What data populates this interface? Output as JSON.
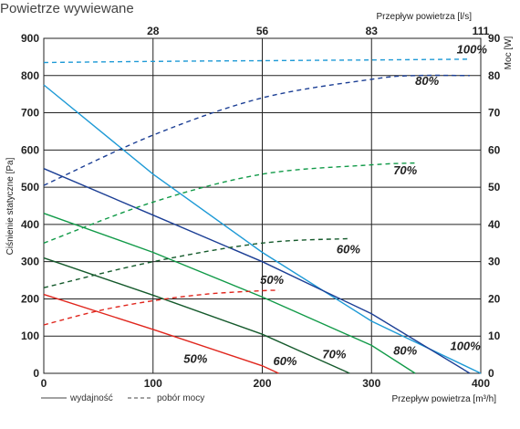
{
  "chart_data": {
    "type": "line",
    "title": "Powietrze wywiewane",
    "xlabel": "Przepływ powietrza [m³/h]",
    "x2label": "Przepływ powietrza [l/s]",
    "ylabel": "Ciśnienie statyczne [Pa]",
    "y2label": "Moc [W]",
    "xlim": [
      0,
      400
    ],
    "ylim": [
      0,
      900
    ],
    "y2lim": [
      0,
      90
    ],
    "x_ticks": [
      "0",
      "100",
      "200",
      "300",
      "400"
    ],
    "y_ticks": [
      "0",
      "100",
      "200",
      "300",
      "400",
      "500",
      "600",
      "700",
      "800",
      "900"
    ],
    "y2_ticks": [
      "0",
      "10",
      "20",
      "30",
      "40",
      "50",
      "60",
      "70",
      "80",
      "90"
    ],
    "x2_ticks": [
      {
        "label": "28",
        "x": 100
      },
      {
        "label": "56",
        "x": 200
      },
      {
        "label": "83",
        "x": 300
      },
      {
        "label": "111",
        "x": 400
      }
    ],
    "grid": true,
    "legend": [
      {
        "label": "wydajność",
        "dash": "solid"
      },
      {
        "label": "pobór mocy",
        "dash": "dashed"
      }
    ],
    "series": [
      {
        "name": "100%",
        "kind": "wydajność",
        "axis": "left",
        "color": "#1e9ad6",
        "dash": "solid",
        "x": [
          0,
          100,
          200,
          300,
          400
        ],
        "y": [
          775,
          535,
          325,
          140,
          0
        ]
      },
      {
        "name": "80%",
        "kind": "wydajność",
        "axis": "left",
        "color": "#1c3f95",
        "dash": "solid",
        "x": [
          0,
          100,
          200,
          300,
          390
        ],
        "y": [
          550,
          425,
          300,
          160,
          0
        ]
      },
      {
        "name": "70%",
        "kind": "wydajność",
        "axis": "left",
        "color": "#119a48",
        "dash": "solid",
        "x": [
          0,
          100,
          200,
          300,
          340
        ],
        "y": [
          430,
          325,
          205,
          75,
          0
        ]
      },
      {
        "name": "60%",
        "kind": "wydajność",
        "axis": "left",
        "color": "#155a2c",
        "dash": "solid",
        "x": [
          0,
          100,
          200,
          280
        ],
        "y": [
          310,
          210,
          105,
          0
        ]
      },
      {
        "name": "50%",
        "kind": "wydajność",
        "axis": "left",
        "color": "#e0261d",
        "dash": "solid",
        "x": [
          0,
          100,
          200,
          215
        ],
        "y": [
          212,
          118,
          20,
          0
        ]
      },
      {
        "name": "100%",
        "kind": "pobór mocy",
        "axis": "right",
        "color": "#1e9ad6",
        "dash": "dashed",
        "x": [
          0,
          100,
          200,
          300,
          390
        ],
        "y": [
          83.5,
          83.8,
          84,
          84.2,
          84.4
        ]
      },
      {
        "name": "80%",
        "kind": "pobór mocy",
        "axis": "right",
        "color": "#1c3f95",
        "dash": "dashed",
        "x": [
          0,
          100,
          200,
          300,
          340,
          390
        ],
        "y": [
          50.5,
          64,
          74,
          79,
          80,
          80
        ]
      },
      {
        "name": "70%",
        "kind": "pobór mocy",
        "axis": "right",
        "color": "#119a48",
        "dash": "dashed",
        "x": [
          0,
          100,
          200,
          300,
          340
        ],
        "y": [
          35,
          46,
          53.5,
          56,
          56.5
        ]
      },
      {
        "name": "60%",
        "kind": "pobór mocy",
        "axis": "right",
        "color": "#155a2c",
        "dash": "dashed",
        "x": [
          0,
          100,
          200,
          280
        ],
        "y": [
          23,
          30,
          35,
          36.2
        ]
      },
      {
        "name": "50%",
        "kind": "pobór mocy",
        "axis": "right",
        "color": "#e0261d",
        "dash": "dashed",
        "x": [
          0,
          50,
          100,
          150,
          200,
          215
        ],
        "y": [
          13,
          16.8,
          19.5,
          21.3,
          22.2,
          22.3
        ]
      }
    ],
    "annotations": [
      {
        "text": "100%",
        "x": 378,
        "y": 860,
        "axis": "left"
      },
      {
        "text": "80%",
        "x": 340,
        "y": 775,
        "axis": "left"
      },
      {
        "text": "70%",
        "x": 320,
        "y": 535,
        "axis": "left"
      },
      {
        "text": "60%",
        "x": 268,
        "y": 322,
        "axis": "left"
      },
      {
        "text": "50%",
        "x": 198,
        "y": 240,
        "axis": "left"
      },
      {
        "text": "100%",
        "x": 372,
        "y": 63,
        "axis": "left"
      },
      {
        "text": "80%",
        "x": 320,
        "y": 50,
        "axis": "left"
      },
      {
        "text": "70%",
        "x": 255,
        "y": 40,
        "axis": "left"
      },
      {
        "text": "60%",
        "x": 210,
        "y": 22,
        "axis": "left"
      },
      {
        "text": "50%",
        "x": 128,
        "y": 28,
        "axis": "left"
      }
    ]
  }
}
